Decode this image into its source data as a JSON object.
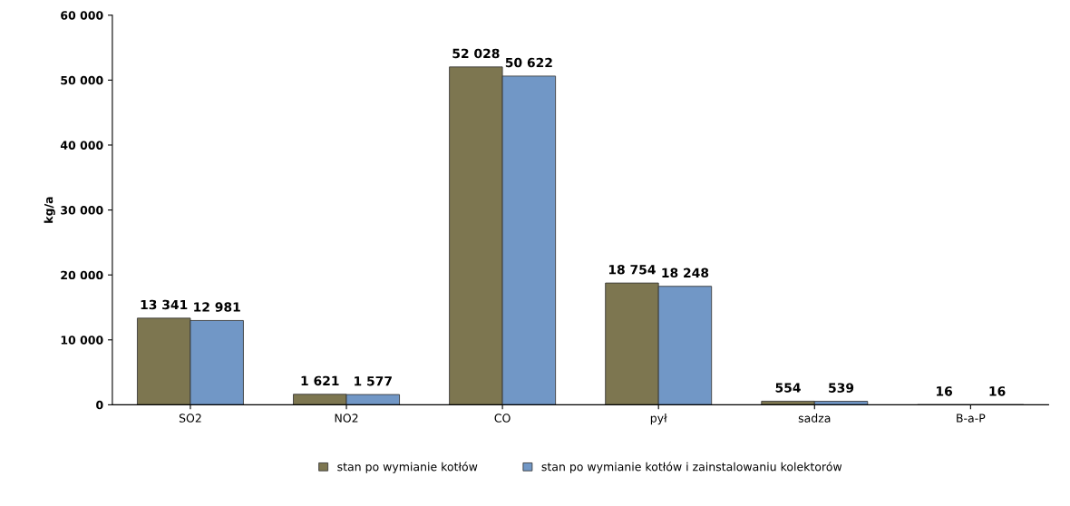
{
  "chart_data": {
    "type": "bar",
    "ylabel": "kg/a",
    "categories": [
      "SO2",
      "NO2",
      "CO",
      "pył",
      "sadza",
      "B-a-P"
    ],
    "series": [
      {
        "name": "stan po wymianie kotłów",
        "color": "#7d7650",
        "values": [
          13341,
          1621,
          52028,
          18754,
          554,
          16
        ],
        "value_labels": [
          "13 341",
          "1 621",
          "52 028",
          "18 754",
          "554",
          "16"
        ]
      },
      {
        "name": "stan po wymianie kotłów i zainstalowaniu kolektorów",
        "color": "#7197c6",
        "values": [
          12981,
          1577,
          50622,
          18248,
          539,
          16
        ],
        "value_labels": [
          "12 981",
          "1 577",
          "50 622",
          "18 248",
          "539",
          "16"
        ]
      }
    ],
    "ylim": [
      0,
      60000
    ],
    "yticks": [
      0,
      {
        "value": 10000,
        "label": "10 000"
      },
      {
        "value": 20000,
        "label": "20 000"
      },
      {
        "value": 30000,
        "label": "30 000"
      },
      {
        "value": 40000,
        "label": "40 000"
      },
      {
        "value": 50000,
        "label": "50 000"
      },
      {
        "value": 60000,
        "label": "60 000"
      }
    ],
    "legend": "bottom",
    "grid": false
  }
}
